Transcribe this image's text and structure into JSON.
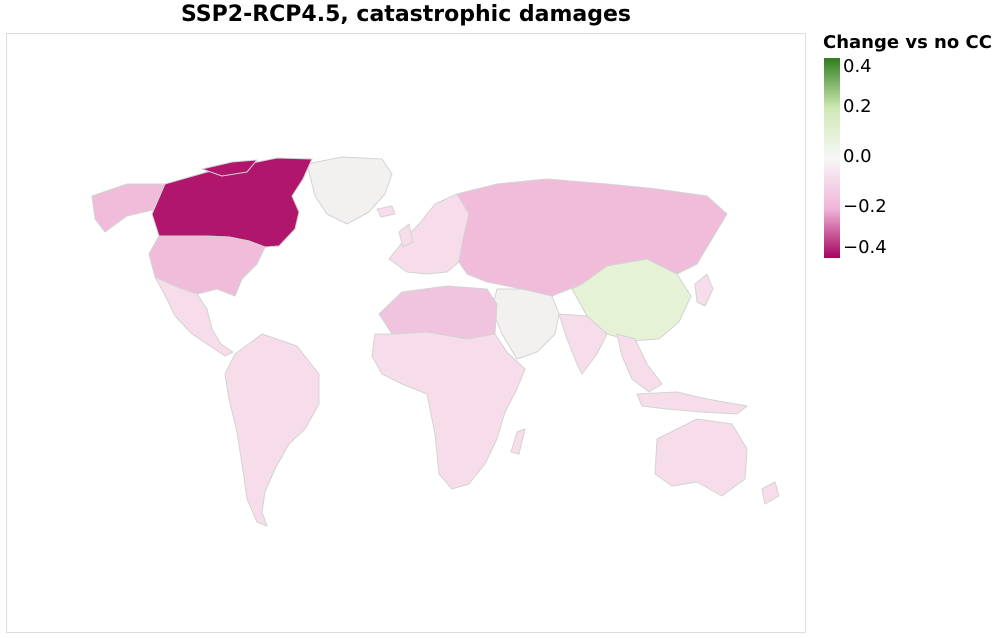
{
  "title": "SSP2-RCP4.5, catastrophic damages",
  "legend": {
    "title": "Change vs no CC",
    "ticks": [
      "0.4",
      "0.2",
      "0.0",
      "−0.2",
      "−0.4"
    ],
    "colors": {
      "max": "#2e7d1e",
      "high": "#cfe9b4",
      "zero": "#f7f7f7",
      "low": "#f1b6da",
      "min": "#a5045e"
    }
  },
  "map": {
    "type": "choropleth",
    "border_color": "#d3d3d3",
    "regions": [
      {
        "name": "Canada",
        "level": "very negative",
        "color": "#b0166c"
      },
      {
        "name": "United States",
        "level": "moderately negative",
        "color": "#f0bcd9"
      },
      {
        "name": "Alaska",
        "level": "moderately negative",
        "color": "#f0bcd9"
      },
      {
        "name": "Russia",
        "level": "moderately negative",
        "color": "#f0bcd9"
      },
      {
        "name": "North Africa",
        "level": "moderately negative",
        "color": "#f0c4de"
      },
      {
        "name": "China",
        "level": "slightly positive",
        "color": "#e6f2d6"
      },
      {
        "name": "Middle East",
        "level": "near zero",
        "color": "#f3f0f0"
      },
      {
        "name": "Rest of world",
        "level": "slightly negative",
        "color": "#f7dde9"
      }
    ]
  }
}
